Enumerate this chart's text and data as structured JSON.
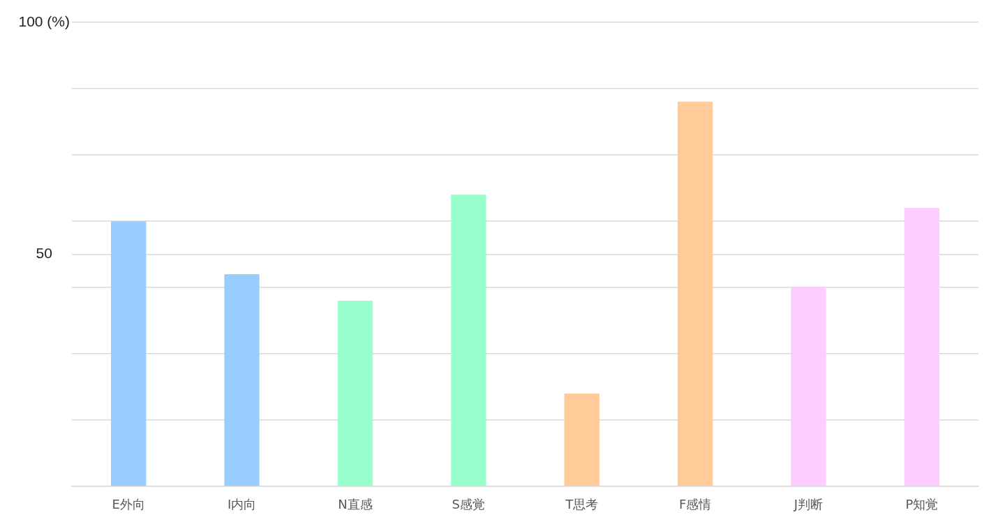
{
  "chart_data": {
    "type": "bar",
    "categories": [
      "E外向",
      "I内向",
      "N直感",
      "S感覚",
      "T思考",
      "F感情",
      "J判断",
      "P知覚"
    ],
    "values": [
      57.1,
      45.7,
      40,
      62.9,
      20,
      82.9,
      42.9,
      60
    ],
    "colors": [
      "#99ccff",
      "#99ccff",
      "#99ffcc",
      "#99ffcc",
      "#ffcc99",
      "#ffcc99",
      "#ffccff",
      "#ffccff"
    ],
    "ylim": [
      0,
      100
    ],
    "yticks": [
      {
        "value": 0,
        "label": null
      },
      {
        "value": 14.29,
        "label": null
      },
      {
        "value": 28.57,
        "label": null
      },
      {
        "value": 42.86,
        "label": null
      },
      {
        "value": 50,
        "label": "50"
      },
      {
        "value": 57.14,
        "label": null
      },
      {
        "value": 71.43,
        "label": null
      },
      {
        "value": 85.71,
        "label": null
      },
      {
        "value": 100,
        "label": "100 (%)"
      }
    ],
    "grid": "y"
  }
}
